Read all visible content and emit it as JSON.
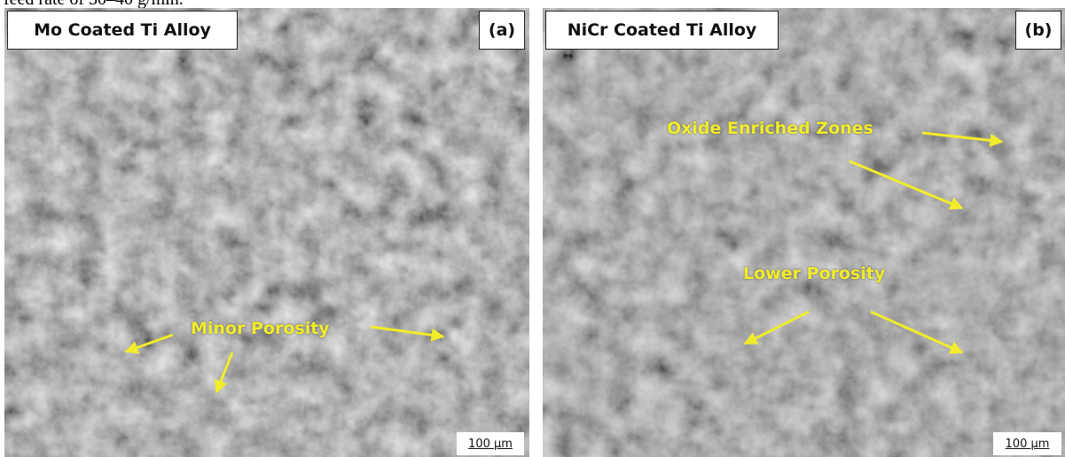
{
  "header": {
    "text": "feed rate of 30–40 g/min."
  },
  "panels": [
    {
      "title": "Mo Coated Ti Alloy",
      "tag": "(a)",
      "annotations": [
        "Minor Porosity"
      ],
      "scale_bar": "100 µm"
    },
    {
      "title": "NiCr Coated Ti Alloy",
      "tag": "(b)",
      "annotations": [
        "Oxide Enriched Zones",
        "Lower Porosity"
      ],
      "scale_bar": "100 µm"
    }
  ]
}
